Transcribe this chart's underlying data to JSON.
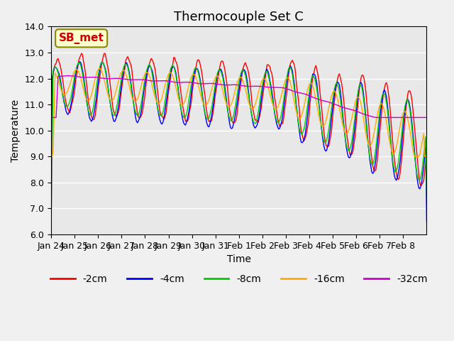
{
  "title": "Thermocouple Set C",
  "xlabel": "Time",
  "ylabel": "Temperature",
  "ylim": [
    6.0,
    14.0
  ],
  "yticks": [
    6.0,
    7.0,
    8.0,
    9.0,
    10.0,
    11.0,
    12.0,
    13.0,
    14.0
  ],
  "xtick_labels": [
    "Jan 24",
    "Jan 25",
    "Jan 26",
    "Jan 27",
    "Jan 28",
    "Jan 29",
    "Jan 30",
    "Jan 31",
    "Feb 1",
    "Feb 2",
    "Feb 3",
    "Feb 4",
    "Feb 5",
    "Feb 6",
    "Feb 7",
    "Feb 8"
  ],
  "series_colors": [
    "#ff0000",
    "#0000ff",
    "#00cc00",
    "#ffaa00",
    "#cc00cc"
  ],
  "series_labels": [
    "-2cm",
    "-4cm",
    "-8cm",
    "-16cm",
    "-32cm"
  ],
  "annotation_text": "SB_met",
  "annotation_color": "#cc0000",
  "annotation_bg": "#ffffcc",
  "annotation_border": "#888800",
  "plot_bg_color": "#e8e8e8",
  "fig_bg_color": "#f0f0f0",
  "title_fontsize": 13,
  "axis_fontsize": 10,
  "tick_fontsize": 9,
  "legend_fontsize": 10,
  "n_days": 16,
  "pts_per_day": 24
}
